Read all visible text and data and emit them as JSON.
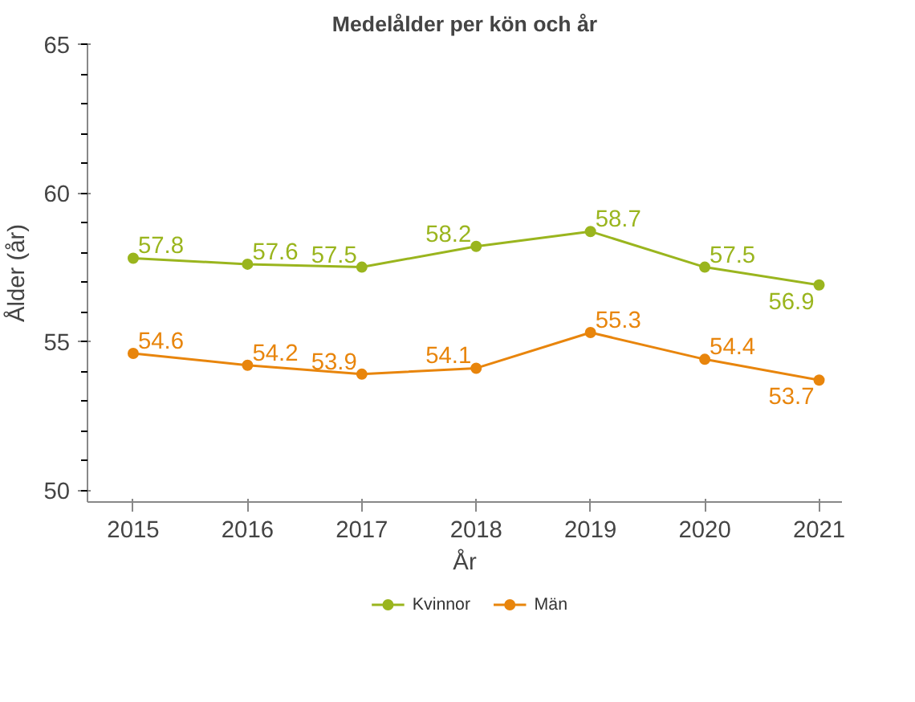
{
  "chart_data": {
    "type": "line",
    "title": "Medelålder per kön och år",
    "xlabel": "År",
    "ylabel": "Ålder (år)",
    "x": [
      2015,
      2016,
      2017,
      2018,
      2019,
      2020,
      2021
    ],
    "series": [
      {
        "name": "Kvinnor",
        "color": "#9ab51e",
        "values": [
          57.8,
          57.6,
          57.5,
          58.2,
          58.7,
          57.5,
          56.9
        ]
      },
      {
        "name": "Män",
        "color": "#e8850c",
        "values": [
          54.6,
          54.2,
          53.9,
          54.1,
          55.3,
          54.4,
          53.7
        ]
      }
    ],
    "xlim": [
      2014.6,
      2021.2
    ],
    "ylim": [
      49.6,
      65
    ],
    "xticks": [
      2015,
      2016,
      2017,
      2018,
      2019,
      2020,
      2021
    ],
    "yticks": [
      50,
      55,
      60,
      65
    ],
    "grid": false,
    "legend": "bottom",
    "marker": "circle",
    "line_style": "solid",
    "data_labels": true
  }
}
